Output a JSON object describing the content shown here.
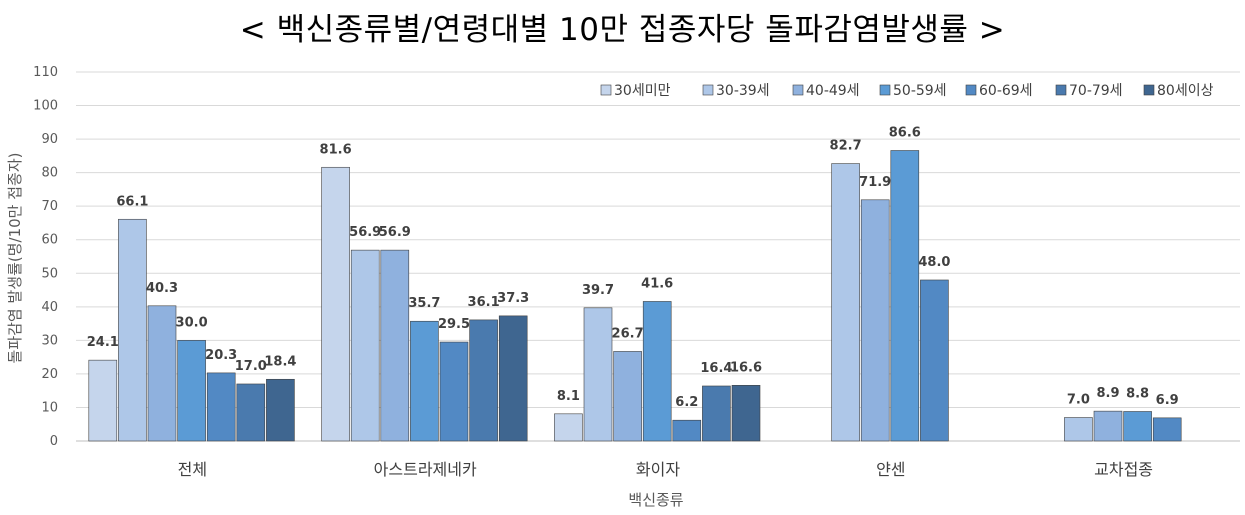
{
  "chart_data": {
    "type": "bar",
    "title": "< 백신종류별/연령대별 10만 접종자당 돌파감염발생률 >",
    "xlabel": "백신종류",
    "ylabel": "돌파감염 발생률(명/10만 접종자)",
    "ylim": [
      0,
      110
    ],
    "yticks": [
      0,
      10,
      20,
      30,
      40,
      50,
      60,
      70,
      80,
      90,
      100,
      110
    ],
    "grid": true,
    "legend_position": "top-right",
    "categories": [
      "전체",
      "아스트라제네카",
      "화이자",
      "얀센",
      "교차접종"
    ],
    "series": [
      {
        "name": "30세미만",
        "color": "#c5d5ec",
        "values": [
          24.1,
          81.6,
          8.1,
          null,
          null
        ]
      },
      {
        "name": "30-39세",
        "color": "#aec7e8",
        "values": [
          66.1,
          56.9,
          39.7,
          82.7,
          7.0
        ]
      },
      {
        "name": "40-49세",
        "color": "#8fb1de",
        "values": [
          40.3,
          56.9,
          26.7,
          71.9,
          8.9
        ]
      },
      {
        "name": "50-59세",
        "color": "#5b9bd5",
        "values": [
          30.0,
          35.7,
          41.6,
          86.6,
          8.8
        ]
      },
      {
        "name": "60-69세",
        "color": "#5289c4",
        "values": [
          20.3,
          29.5,
          6.2,
          48.0,
          6.9
        ]
      },
      {
        "name": "70-79세",
        "color": "#4a7aae",
        "values": [
          17.0,
          36.1,
          16.4,
          null,
          null
        ]
      },
      {
        "name": "80세이상",
        "color": "#3f6690",
        "values": [
          18.4,
          37.3,
          16.6,
          null,
          null
        ]
      }
    ]
  }
}
